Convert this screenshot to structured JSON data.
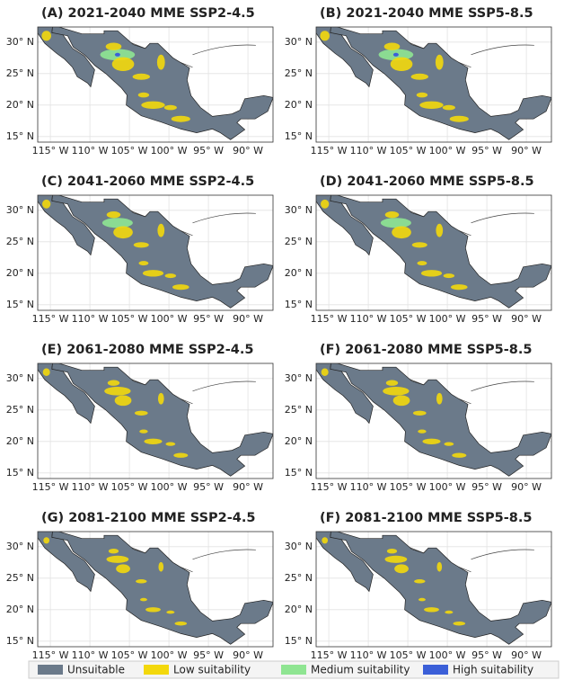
{
  "panels": [
    {
      "title": "(A) 2021-2040 MME SSP2-4.5"
    },
    {
      "title": "(B) 2021-2040 MME SSP5-8.5"
    },
    {
      "title": "(C) 2041-2060 MME SSP2-4.5"
    },
    {
      "title": "(D) 2041-2060 MME SSP5-8.5"
    },
    {
      "title": "(E) 2061-2080 MME SSP2-4.5"
    },
    {
      "title": "(F) 2061-2080 MME SSP5-8.5"
    },
    {
      "title": "(G) 2081-2100 MME SSP2-4.5"
    },
    {
      "title": "(F) 2081-2100 MME SSP5-8.5"
    }
  ],
  "lat_ticks": [
    {
      "value": 30,
      "label": "30° N"
    },
    {
      "value": 25,
      "label": "25° N"
    },
    {
      "value": 20,
      "label": "20° N"
    },
    {
      "value": 15,
      "label": "15° N"
    }
  ],
  "lon_ticks": [
    {
      "value": -115,
      "label": "115° W"
    },
    {
      "value": -110,
      "label": "110° W"
    },
    {
      "value": -105,
      "label": "105° W"
    },
    {
      "value": -100,
      "label": "100° W"
    },
    {
      "value": -95,
      "label": "95° W"
    },
    {
      "value": -90,
      "label": "90° W"
    }
  ],
  "legend": [
    {
      "label": "Unsuitable",
      "color": "#6b7a8a"
    },
    {
      "label": "Low suitability",
      "color": "#f3d80c"
    },
    {
      "label": "Medium suitability",
      "color": "#8fe592"
    },
    {
      "label": "High suitability",
      "color": "#3b5fd8"
    }
  ]
}
